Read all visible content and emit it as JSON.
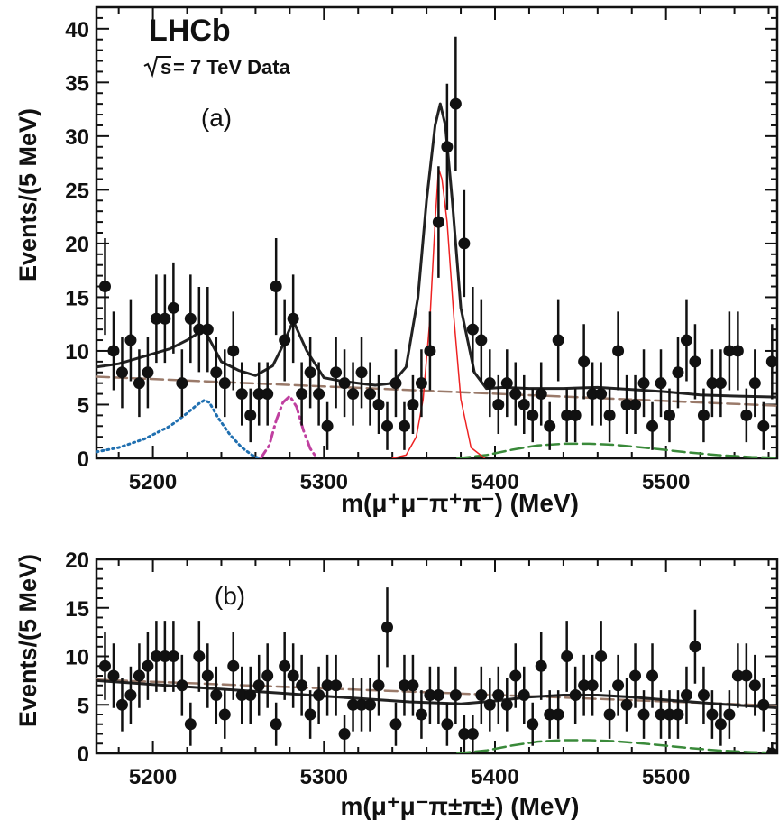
{
  "chart_data": [
    {
      "type": "scatter",
      "panel_label": "(a)",
      "experiment": "LHCb",
      "energy_prefix": "s",
      "energy_label": " = 7 TeV Data",
      "xlabel": "m(μ⁺μ⁻π⁺π⁻) (MeV)",
      "ylabel": "Events/(5 MeV)",
      "xlim": [
        5167,
        5565
      ],
      "ylim": [
        0,
        42
      ],
      "xticks": [
        "5200",
        "5300",
        "5400",
        "5500"
      ],
      "yticks": [
        "0",
        "5",
        "10",
        "15",
        "20",
        "25",
        "30",
        "35",
        "40"
      ],
      "data_points": {
        "x": [
          5172,
          5177,
          5182,
          5187,
          5192,
          5197,
          5202,
          5207,
          5212,
          5217,
          5222,
          5227,
          5232,
          5237,
          5242,
          5247,
          5252,
          5257,
          5262,
          5267,
          5272,
          5277,
          5282,
          5287,
          5292,
          5297,
          5302,
          5307,
          5312,
          5317,
          5322,
          5327,
          5332,
          5337,
          5342,
          5347,
          5352,
          5357,
          5362,
          5367,
          5372,
          5377,
          5382,
          5387,
          5392,
          5397,
          5402,
          5407,
          5412,
          5417,
          5422,
          5427,
          5432,
          5437,
          5442,
          5447,
          5452,
          5457,
          5462,
          5467,
          5472,
          5477,
          5482,
          5487,
          5492,
          5497,
          5502,
          5507,
          5512,
          5517,
          5522,
          5527,
          5532,
          5537,
          5542,
          5547,
          5552,
          5557,
          5562
        ],
        "y": [
          16,
          10,
          8,
          11,
          7,
          8,
          13,
          13,
          14,
          7,
          13,
          12,
          12,
          8,
          7,
          10,
          6,
          4,
          6,
          6,
          16,
          11,
          13,
          6,
          8,
          6,
          3,
          8,
          7,
          6,
          8,
          6,
          5,
          3,
          7,
          3,
          5,
          7,
          10,
          22,
          29,
          33,
          20,
          12,
          11,
          7,
          5,
          7,
          6,
          5,
          4,
          6,
          3,
          11,
          4,
          4,
          9,
          6,
          6,
          4,
          10,
          5,
          5,
          7,
          3,
          7,
          4,
          8,
          11,
          9,
          4,
          7,
          7,
          10,
          10,
          4,
          7,
          3,
          9
        ]
      },
      "series": [
        {
          "name": "",
          "style": "solid",
          "color": "#222222",
          "x": [
            5167,
            5180,
            5195,
            5210,
            5220,
            5230,
            5240,
            5250,
            5260,
            5270,
            5275,
            5282,
            5290,
            5300,
            5310,
            5320,
            5330,
            5340,
            5348,
            5355,
            5360,
            5365,
            5368,
            5371,
            5375,
            5380,
            5388,
            5395,
            5405,
            5420,
            5440,
            5460,
            5480,
            5500,
            5520,
            5540,
            5565
          ],
          "y": [
            8.5,
            8.8,
            9.5,
            10.2,
            11,
            12,
            9,
            8.2,
            7.7,
            8.6,
            10.2,
            12.8,
            10,
            7.5,
            7.2,
            7,
            6.8,
            7,
            8.5,
            15,
            24,
            31,
            33,
            31,
            24,
            14,
            8,
            6.5,
            6.6,
            6.5,
            6.5,
            6.6,
            6.4,
            6.2,
            5.9,
            5.8,
            5.7
          ]
        },
        {
          "name": "",
          "style": "dashed",
          "color": "#9a7a6a",
          "x": [
            5167,
            5565
          ],
          "y": [
            7.6,
            4.9
          ]
        },
        {
          "name": "",
          "style": "dotted",
          "color": "#1f6fb0",
          "x": [
            5167,
            5180,
            5195,
            5210,
            5220,
            5226,
            5230,
            5233,
            5238,
            5245,
            5252,
            5258,
            5262
          ],
          "y": [
            0.6,
            1.0,
            1.8,
            3.0,
            4.2,
            5.0,
            5.4,
            5.2,
            3.8,
            2.2,
            1.0,
            0.3,
            0
          ]
        },
        {
          "name": "",
          "style": "dashdot",
          "color": "#c040a0",
          "x": [
            5263,
            5268,
            5272,
            5276,
            5280,
            5284,
            5288,
            5292,
            5296
          ],
          "y": [
            0,
            1.2,
            3.5,
            5.2,
            5.8,
            4.8,
            2.6,
            0.9,
            0
          ]
        },
        {
          "name": "",
          "style": "thin-solid",
          "color": "#ee2222",
          "x": [
            5340,
            5348,
            5354,
            5358,
            5362,
            5365,
            5367,
            5369,
            5372,
            5376,
            5380,
            5386,
            5394
          ],
          "y": [
            0,
            0.3,
            2,
            5.5,
            13,
            22,
            27,
            26,
            22,
            13,
            5.5,
            1,
            0
          ]
        },
        {
          "name": "",
          "style": "dashed",
          "color": "#3a8a3a",
          "x": [
            5378,
            5395,
            5410,
            5425,
            5440,
            5455,
            5470,
            5490,
            5510,
            5530,
            5550,
            5565
          ],
          "y": [
            0,
            0.3,
            0.8,
            1.2,
            1.35,
            1.35,
            1.25,
            0.95,
            0.6,
            0.3,
            0.12,
            0.05
          ]
        }
      ]
    },
    {
      "type": "scatter",
      "panel_label": "(b)",
      "xlabel": "m(μ⁺μ⁻π±π±) (MeV)",
      "ylabel": "Events/(5 MeV)",
      "xlim": [
        5167,
        5565
      ],
      "ylim": [
        0,
        20
      ],
      "xticks": [
        "5200",
        "5300",
        "5400",
        "5500"
      ],
      "yticks": [
        "0",
        "5",
        "10",
        "15",
        "20"
      ],
      "data_points": {
        "x": [
          5172,
          5177,
          5182,
          5187,
          5192,
          5197,
          5202,
          5207,
          5212,
          5217,
          5222,
          5227,
          5232,
          5237,
          5242,
          5247,
          5252,
          5257,
          5262,
          5267,
          5272,
          5277,
          5282,
          5287,
          5292,
          5297,
          5302,
          5307,
          5312,
          5317,
          5322,
          5327,
          5332,
          5337,
          5342,
          5347,
          5352,
          5357,
          5362,
          5367,
          5372,
          5377,
          5382,
          5387,
          5392,
          5397,
          5402,
          5407,
          5412,
          5417,
          5422,
          5427,
          5432,
          5437,
          5442,
          5447,
          5452,
          5457,
          5462,
          5467,
          5472,
          5477,
          5482,
          5487,
          5492,
          5497,
          5502,
          5507,
          5512,
          5517,
          5522,
          5527,
          5532,
          5537,
          5542,
          5547,
          5552,
          5557,
          5562
        ],
        "y": [
          9,
          8,
          5,
          6,
          8,
          9,
          10,
          10,
          10,
          7,
          3,
          10,
          8,
          6,
          4,
          9,
          6,
          6,
          7,
          8,
          3,
          9,
          8,
          7,
          4,
          6,
          7,
          7,
          2,
          5,
          5,
          5,
          7,
          13,
          3,
          7,
          7,
          4,
          6,
          6,
          3,
          6,
          2,
          2,
          6,
          5,
          6,
          5,
          8,
          6,
          3,
          9,
          4,
          4,
          10,
          6,
          7,
          7,
          10,
          4,
          7,
          5,
          8,
          4,
          8,
          4,
          4,
          4,
          6,
          11,
          6,
          4,
          3,
          4,
          8,
          8,
          7,
          5,
          0
        ]
      },
      "series": [
        {
          "name": "",
          "style": "solid",
          "color": "#222222",
          "x": [
            5167,
            5200,
            5250,
            5300,
            5350,
            5380,
            5400,
            5420,
            5440,
            5460,
            5480,
            5500,
            5530,
            5565
          ],
          "y": [
            7.5,
            7.1,
            6.5,
            5.9,
            5.3,
            5.1,
            5.4,
            5.8,
            6.0,
            6.0,
            5.8,
            5.5,
            5.1,
            4.7
          ]
        },
        {
          "name": "",
          "style": "dashed",
          "color": "#9a7a6a",
          "x": [
            5167,
            5565
          ],
          "y": [
            7.6,
            4.9
          ]
        },
        {
          "name": "",
          "style": "dashed",
          "color": "#3a8a3a",
          "x": [
            5378,
            5395,
            5410,
            5425,
            5440,
            5455,
            5470,
            5490,
            5510,
            5530,
            5550,
            5565
          ],
          "y": [
            0,
            0.3,
            0.8,
            1.2,
            1.35,
            1.35,
            1.25,
            0.95,
            0.6,
            0.3,
            0.12,
            0.05
          ]
        }
      ]
    }
  ]
}
